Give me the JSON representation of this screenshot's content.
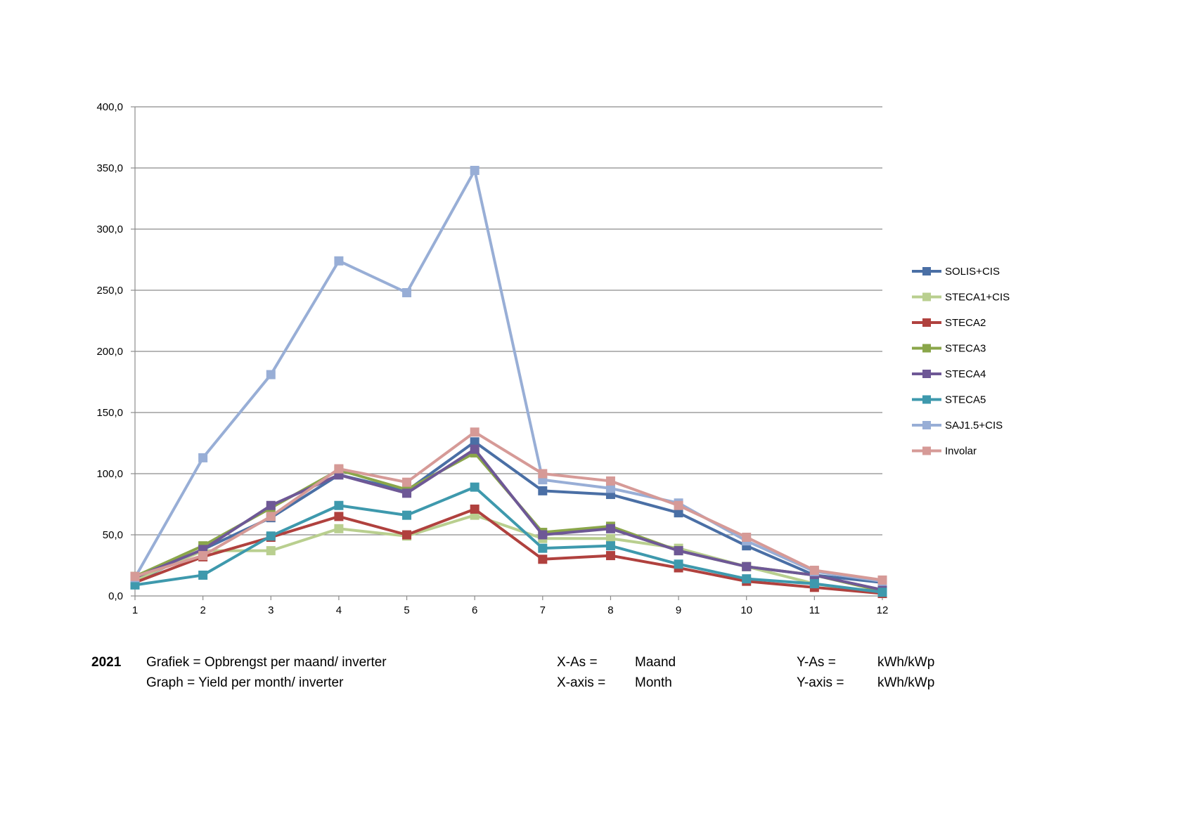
{
  "chart_data": {
    "type": "line",
    "x": [
      1,
      2,
      3,
      4,
      5,
      6,
      7,
      8,
      9,
      10,
      11,
      12
    ],
    "xticks": [
      "1",
      "2",
      "3",
      "4",
      "5",
      "6",
      "7",
      "8",
      "9",
      "10",
      "11",
      "12"
    ],
    "ylim": [
      0,
      400
    ],
    "yticks": [
      "0,0",
      "50,0",
      "100,0",
      "150,0",
      "200,0",
      "250,0",
      "300,0",
      "350,0",
      "400,0"
    ],
    "grid": true,
    "legend_position": "right",
    "series": [
      {
        "name": "SOLIS+CIS",
        "color": "#4a6fa5",
        "values": [
          12,
          38,
          64,
          99,
          86,
          126,
          86,
          83,
          68,
          41,
          17,
          11
        ]
      },
      {
        "name": "STECA1+CIS",
        "color": "#b9cf8f",
        "values": [
          13,
          37,
          37,
          55,
          49,
          66,
          47,
          47,
          39,
          24,
          10,
          2
        ]
      },
      {
        "name": "STECA2",
        "color": "#b0413e",
        "values": [
          11,
          32,
          48,
          65,
          50,
          71,
          30,
          33,
          23,
          12,
          7,
          2
        ]
      },
      {
        "name": "STECA3",
        "color": "#8aa64a",
        "values": [
          16,
          41,
          72,
          103,
          87,
          117,
          52,
          57,
          37,
          24,
          17,
          4
        ]
      },
      {
        "name": "STECA4",
        "color": "#6e5896",
        "values": [
          15,
          38,
          74,
          99,
          84,
          120,
          50,
          55,
          37,
          24,
          17,
          5
        ]
      },
      {
        "name": "STECA5",
        "color": "#3e99ad",
        "values": [
          9,
          17,
          49,
          74,
          66,
          89,
          39,
          41,
          26,
          14,
          10,
          3
        ]
      },
      {
        "name": "SAJ1.5+CIS",
        "color": "#98aed6",
        "values": [
          15,
          113,
          181,
          274,
          248,
          348,
          95,
          88,
          76,
          45,
          20,
          12
        ]
      },
      {
        "name": "Involar",
        "color": "#d69a97",
        "values": [
          16,
          33,
          65,
          104,
          93,
          134,
          100,
          94,
          74,
          48,
          21,
          13
        ]
      }
    ]
  },
  "caption": {
    "year": "2021",
    "line1": "Grafiek = Opbrengst per maand/ inverter",
    "line2": "Graph = Yield per month/ inverter",
    "xaxis_nl_label": "X-As =",
    "xaxis_en_label": "X-axis =",
    "xaxis_nl_value": "Maand",
    "xaxis_en_value": "Month",
    "yaxis_nl_label": "Y-As =",
    "yaxis_en_label": "Y-axis =",
    "yaxis_nl_value": "kWh/kWp",
    "yaxis_en_value": "kWh/kWp"
  }
}
